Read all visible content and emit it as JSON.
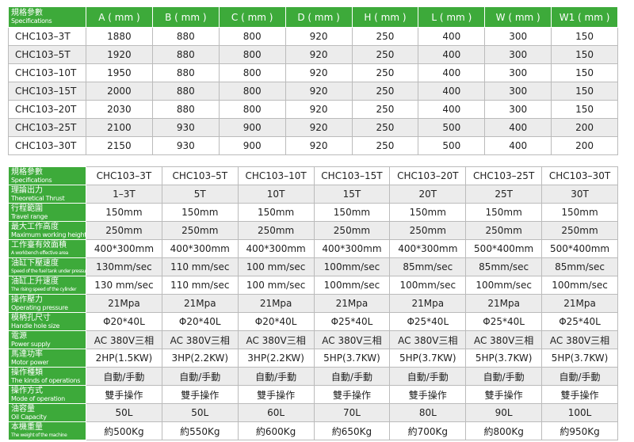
{
  "table1": {
    "header": {
      "zh": "規格參數",
      "en": "Specifications",
      "columns": [
        "A ( mm )",
        "B ( mm )",
        "C ( mm )",
        "D ( mm )",
        "H ( mm )",
        "L ( mm )",
        "W ( mm )",
        "W1 ( mm )"
      ]
    },
    "rows": [
      {
        "model": "CHC103–3T",
        "values": [
          1880,
          880,
          800,
          920,
          250,
          400,
          300,
          150
        ]
      },
      {
        "model": "CHC103–5T",
        "values": [
          1920,
          880,
          800,
          920,
          250,
          400,
          300,
          150
        ]
      },
      {
        "model": "CHC103–10T",
        "values": [
          1950,
          880,
          800,
          920,
          250,
          400,
          300,
          150
        ]
      },
      {
        "model": "CHC103–15T",
        "values": [
          2000,
          880,
          800,
          920,
          250,
          400,
          300,
          150
        ]
      },
      {
        "model": "CHC103–20T",
        "values": [
          2030,
          880,
          800,
          920,
          250,
          400,
          300,
          150
        ]
      },
      {
        "model": "CHC103–25T",
        "values": [
          2100,
          930,
          900,
          920,
          250,
          500,
          400,
          200
        ]
      },
      {
        "model": "CHC103–30T",
        "values": [
          2150,
          930,
          900,
          920,
          250,
          500,
          400,
          200
        ]
      }
    ]
  },
  "table2": {
    "header": {
      "zh": "規格參數",
      "en": "Specifications",
      "models": [
        "CHC103–3T",
        "CHC103–5T",
        "CHC103–10T",
        "CHC103–15T",
        "CHC103–20T",
        "CHC103–25T",
        "CHC103–30T"
      ]
    },
    "rows": [
      {
        "zh": "理論出力",
        "en": "Theoretical Thrust",
        "values": [
          "1–3T",
          "5T",
          "10T",
          "15T",
          "20T",
          "25T",
          "30T"
        ]
      },
      {
        "zh": "行程範圍",
        "en": "Travel range",
        "values": [
          "150mm",
          "150mm",
          "150mm",
          "150mm",
          "150mm",
          "150mm",
          "150mm"
        ]
      },
      {
        "zh": "最大工作高度",
        "en": "Maximum working height",
        "values": [
          "250mm",
          "250mm",
          "250mm",
          "250mm",
          "250mm",
          "250mm",
          "250mm"
        ]
      },
      {
        "zh": "工作臺有效面積",
        "en": "A workbench effective area",
        "values": [
          "400*300mm",
          "400*300mm",
          "400*300mm",
          "400*300mm",
          "400*300mm",
          "500*400mm",
          "500*400mm"
        ]
      },
      {
        "zh": "油缸下壓速度",
        "en": "Speed of the fuel tank under pressure",
        "values": [
          "130mm/sec",
          "110 mm/sec",
          "100 mm/sec",
          "100mm/sec",
          "85mm/sec",
          "85mm/sec",
          "85mm/sec"
        ]
      },
      {
        "zh": "油缸上升速度",
        "en": "The rising speed of the cylinder",
        "values": [
          "130 mm/sec",
          "110 mm/sec",
          "100 mm/sec",
          "100mm/sec",
          "100mm/sec",
          "100mm/sec",
          "100mm/sec"
        ]
      },
      {
        "zh": "操作壓力",
        "en": "Operating pressure",
        "values": [
          "21Mpa",
          "21Mpa",
          "21Mpa",
          "21Mpa",
          "21Mpa",
          "21Mpa",
          "21Mpa"
        ]
      },
      {
        "zh": "模柄孔尺寸",
        "en": "Handle hole size",
        "values": [
          "Φ20*40L",
          "Φ20*40L",
          "Φ20*40L",
          "Φ25*40L",
          "Φ25*40L",
          "Φ25*40L",
          "Φ25*40L"
        ]
      },
      {
        "zh": "電源",
        "en": "Power supply",
        "values": [
          "AC 380V三相",
          "AC 380V三相",
          "AC 380V三相",
          "AC 380V三相",
          "AC 380V三相",
          "AC 380V三相",
          "AC 380V三相"
        ]
      },
      {
        "zh": "馬達功率",
        "en": "Motor power",
        "values": [
          "2HP(1.5KW)",
          "3HP(2.2KW)",
          "3HP(2.2KW)",
          "5HP(3.7KW)",
          "5HP(3.7KW)",
          "5HP(3.7KW)",
          "5HP(3.7KW)"
        ]
      },
      {
        "zh": "操作種類",
        "en": "The kinds of operations",
        "values": [
          "自動/手動",
          "自動/手動",
          "自動/手動",
          "自動/手動",
          "自動/手動",
          "自動/手動",
          "自動/手動"
        ]
      },
      {
        "zh": "操作方式",
        "en": "Mode of operation",
        "values": [
          "雙手操作",
          "雙手操作",
          "雙手操作",
          "雙手操作",
          "雙手操作",
          "雙手操作",
          "雙手操作"
        ]
      },
      {
        "zh": "油容量",
        "en": "Oil Capacity",
        "values": [
          "50L",
          "50L",
          "60L",
          "70L",
          "80L",
          "90L",
          "100L"
        ]
      },
      {
        "zh": "本機重量",
        "en": "The weight of the machine",
        "values": [
          "約500Kg",
          "約550Kg",
          "約600Kg",
          "約650Kg",
          "約700Kg",
          "約800Kg",
          "約950Kg"
        ]
      }
    ]
  }
}
